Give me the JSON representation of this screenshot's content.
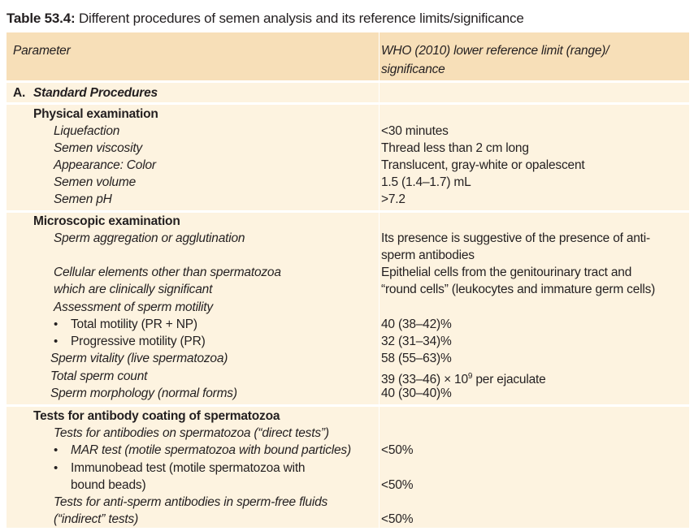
{
  "caption": {
    "label": "Table 53.4:",
    "text": " Different procedures of semen analysis and its reference limits/significance"
  },
  "header": {
    "parameter": "Parameter",
    "reference_line1": "WHO (2010) lower reference limit (range)/",
    "reference_line2": "significance"
  },
  "section_a": {
    "letter": "A.",
    "title": "Standard Procedures"
  },
  "physical": {
    "title": "Physical examination",
    "rows": [
      {
        "param": "Liquefaction",
        "value": "<30 minutes"
      },
      {
        "param": "Semen viscosity",
        "value": "Thread less than 2 cm long"
      },
      {
        "param": "Appearance: Color",
        "value": "Translucent, gray-white or opalescent"
      },
      {
        "param": "Semen volume",
        "value": "1.5 (1.4–1.7) mL"
      },
      {
        "param": "Semen pH",
        "value": ">7.2"
      }
    ]
  },
  "microscopic": {
    "title": "Microscopic examination",
    "aggregation": {
      "param": "Sperm aggregation or agglutination",
      "value_line1": "Its presence is suggestive of the presence of anti-",
      "value_line2": "sperm antibodies"
    },
    "cellular": {
      "param_line1": "Cellular elements other than spermatozoa",
      "param_line2": "which are clinically significant",
      "value_line1": "Epithelial cells from the genitourinary tract and",
      "value_line2": "“round cells” (leukocytes and immature germ cells)"
    },
    "motility_heading": "Assessment of sperm motility",
    "total_motility": {
      "param": "Total motility (PR + NP)",
      "value": "40 (38–42)%"
    },
    "progressive_motility": {
      "param": "Progressive motility (PR)",
      "value": "32 (31–34)%"
    },
    "vitality": {
      "param": "Sperm vitality (live spermatozoa)",
      "value": "58 (55–63)%"
    },
    "count": {
      "param": "Total sperm count",
      "value_prefix": "39 (33–46) × 10",
      "value_exp": "9",
      "value_suffix": " per ejaculate"
    },
    "morphology": {
      "param": "Sperm morphology (normal forms)",
      "value": "40 (30–40)%"
    }
  },
  "antibody": {
    "title": "Tests for antibody coating of spermatozoa",
    "direct_heading": "Tests for antibodies on spermatozoa (“direct tests”)",
    "mar": {
      "param": "MAR test (motile spermatozoa with bound particles)",
      "value": "<50%"
    },
    "immunobead": {
      "param_line1": "Immunobead test (motile spermatozoa with",
      "param_line2": "bound beads)",
      "value": "<50%"
    },
    "indirect": {
      "param_line1": "Tests for anti-sperm antibodies in sperm-free fluids",
      "param_line2": "(“indirect” tests)",
      "value": "<50%"
    }
  }
}
